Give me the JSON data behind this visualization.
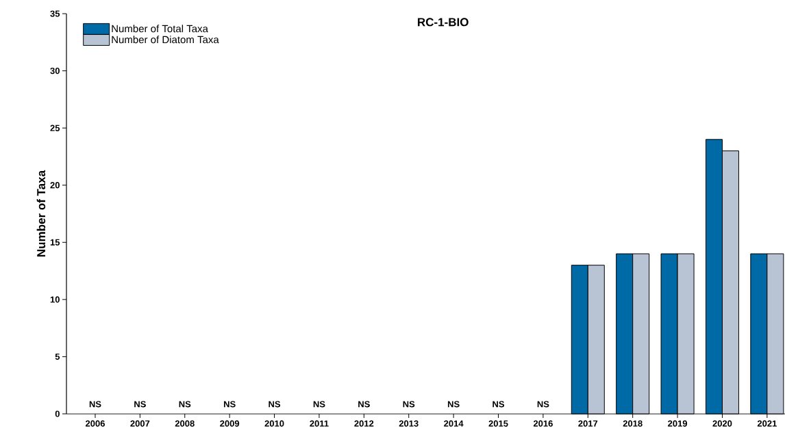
{
  "chart_data": {
    "type": "bar",
    "title": "RC-1-BIO",
    "ylabel": "Number of Taxa",
    "categories": [
      "2006",
      "2007",
      "2008",
      "2009",
      "2010",
      "2011",
      "2012",
      "2013",
      "2014",
      "2015",
      "2016",
      "2017",
      "2018",
      "2019",
      "2020",
      "2021"
    ],
    "series": [
      {
        "name": "Number of Total Taxa",
        "color": "#006aa6",
        "values": [
          null,
          null,
          null,
          null,
          null,
          null,
          null,
          null,
          null,
          null,
          null,
          13,
          14,
          14,
          24,
          14
        ]
      },
      {
        "name": "Number of Diatom Taxa",
        "color": "#b8c4d4",
        "values": [
          null,
          null,
          null,
          null,
          null,
          null,
          null,
          null,
          null,
          null,
          null,
          13,
          14,
          14,
          23,
          14
        ]
      }
    ],
    "ylim": [
      0,
      35
    ],
    "yticks": [
      0,
      5,
      10,
      15,
      20,
      25,
      30,
      35
    ],
    "grid": false,
    "legend": "top left",
    "annotations": [
      "NS",
      "NS",
      "NS",
      "NS",
      "NS",
      "NS",
      "NS",
      "NS",
      "NS",
      "NS",
      "NS"
    ]
  }
}
